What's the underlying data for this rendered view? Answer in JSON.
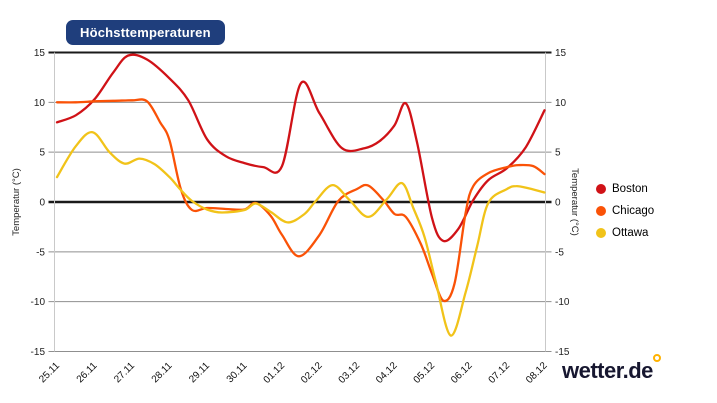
{
  "header": {
    "title_badge": "Höchsttemperaturen"
  },
  "branding": {
    "logo_text": "wetter.de"
  },
  "axes": {
    "y_left_title": "Temperatur (°C)",
    "y_right_title": "Temperatur (°C)"
  },
  "legend": {
    "items": [
      {
        "label": "Boston",
        "color": "#d01217"
      },
      {
        "label": "Chicago",
        "color": "#fa5207"
      },
      {
        "label": "Ottawa",
        "color": "#f1c319"
      }
    ]
  },
  "chart_data": {
    "type": "line",
    "title": "Höchsttemperaturen",
    "ylabel": "Temperatur (°C)",
    "ylim": [
      -15,
      15
    ],
    "y_ticks": [
      15,
      10,
      5,
      0,
      -5,
      -10,
      -15
    ],
    "grid": true,
    "legend_position": "right",
    "x_tick_labels": [
      "25.11",
      "26.11",
      "27.11",
      "28.11",
      "29.11",
      "30.11",
      "01.12",
      "02.12",
      "03.12",
      "04.12",
      "05.12",
      "06.12",
      "07.12",
      "08.12"
    ],
    "series": [
      {
        "name": "Boston",
        "color": "#d01217",
        "points": [
          [
            0,
            8
          ],
          [
            0.5,
            8.7
          ],
          [
            1,
            10.3
          ],
          [
            1.5,
            13
          ],
          [
            1.9,
            14.7
          ],
          [
            2.4,
            14.3
          ],
          [
            3,
            12.4
          ],
          [
            3.5,
            10.2
          ],
          [
            4,
            6.3
          ],
          [
            4.5,
            4.6
          ],
          [
            5,
            3.9
          ],
          [
            5.5,
            3.5
          ],
          [
            6,
            3.6
          ],
          [
            6.5,
            11.9
          ],
          [
            7,
            8.9
          ],
          [
            7.6,
            5.4
          ],
          [
            8.2,
            5.4
          ],
          [
            8.6,
            6.1
          ],
          [
            9,
            7.7
          ],
          [
            9.3,
            9.9
          ],
          [
            9.6,
            6
          ],
          [
            10,
            -1.6
          ],
          [
            10.3,
            -3.9
          ],
          [
            10.7,
            -2.7
          ],
          [
            11.1,
            0.2
          ],
          [
            11.5,
            2.2
          ],
          [
            12,
            3.4
          ],
          [
            12.5,
            5.5
          ],
          [
            13,
            9.2
          ]
        ]
      },
      {
        "name": "Chicago",
        "color": "#fa5207",
        "points": [
          [
            0,
            10
          ],
          [
            0.5,
            10
          ],
          [
            1,
            10.1
          ],
          [
            1.5,
            10.15
          ],
          [
            2,
            10.2
          ],
          [
            2.4,
            10.1
          ],
          [
            2.75,
            8
          ],
          [
            3,
            6.2
          ],
          [
            3.3,
            1.3
          ],
          [
            3.6,
            -0.8
          ],
          [
            4,
            -0.6
          ],
          [
            4.5,
            -0.7
          ],
          [
            5,
            -0.75
          ],
          [
            5.3,
            -0.1
          ],
          [
            5.7,
            -1.4
          ],
          [
            6,
            -3.3
          ],
          [
            6.45,
            -5.45
          ],
          [
            7,
            -3.3
          ],
          [
            7.5,
            0.1
          ],
          [
            8,
            1.3
          ],
          [
            8.3,
            1.65
          ],
          [
            8.7,
            0.2
          ],
          [
            9,
            -1.2
          ],
          [
            9.3,
            -1.5
          ],
          [
            9.7,
            -4.2
          ],
          [
            10,
            -7.2
          ],
          [
            10.3,
            -9.9
          ],
          [
            10.6,
            -8.2
          ],
          [
            10.9,
            -1
          ],
          [
            11.1,
            1.6
          ],
          [
            11.5,
            2.9
          ],
          [
            12,
            3.5
          ],
          [
            12.3,
            3.7
          ],
          [
            12.7,
            3.6
          ],
          [
            13,
            2.8
          ]
        ]
      },
      {
        "name": "Ottawa",
        "color": "#f1c319",
        "points": [
          [
            0,
            2.5
          ],
          [
            0.5,
            5.6
          ],
          [
            0.95,
            7
          ],
          [
            1.4,
            5
          ],
          [
            1.8,
            3.85
          ],
          [
            2.2,
            4.35
          ],
          [
            2.6,
            3.8
          ],
          [
            3,
            2.5
          ],
          [
            3.3,
            1.2
          ],
          [
            3.6,
            0.1
          ],
          [
            4,
            -0.75
          ],
          [
            4.4,
            -1.05
          ],
          [
            5,
            -0.8
          ],
          [
            5.3,
            -0.15
          ],
          [
            5.7,
            -1
          ],
          [
            6.15,
            -2.05
          ],
          [
            6.6,
            -1.2
          ],
          [
            6.9,
            0.1
          ],
          [
            7.35,
            1.7
          ],
          [
            7.8,
            0.2
          ],
          [
            8.3,
            -1.5
          ],
          [
            8.8,
            0.3
          ],
          [
            9.2,
            1.9
          ],
          [
            9.5,
            -0.6
          ],
          [
            9.8,
            -3.5
          ],
          [
            10.1,
            -8
          ],
          [
            10.5,
            -13.4
          ],
          [
            10.9,
            -9
          ],
          [
            11.2,
            -4.5
          ],
          [
            11.5,
            -0.1
          ],
          [
            12,
            1.3
          ],
          [
            12.25,
            1.6
          ],
          [
            12.6,
            1.35
          ],
          [
            13,
            0.95
          ]
        ]
      }
    ]
  }
}
